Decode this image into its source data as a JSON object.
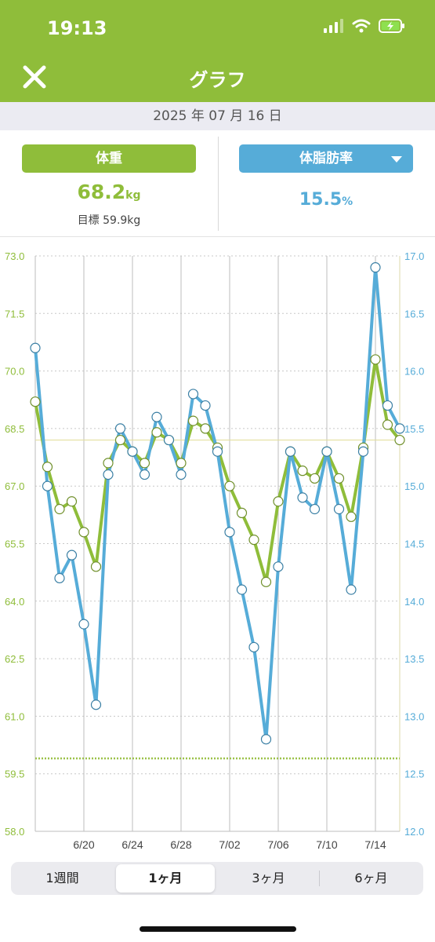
{
  "status_bar": {
    "time": "19:13",
    "icons": [
      "cellular-icon",
      "wifi-icon",
      "battery-charging-icon"
    ]
  },
  "header": {
    "title": "グラフ",
    "close_icon": "close-icon",
    "background": "#8fbd3a"
  },
  "date_bar": {
    "date": "2025 年 07 月 16 日"
  },
  "summary": {
    "weight": {
      "label": "体重",
      "value": "68.2",
      "unit": "kg",
      "goal": "目標 59.9kg",
      "color": "#8fbd3a"
    },
    "body_fat": {
      "label": "体脂肪率",
      "value": "15.5",
      "unit": "%",
      "color": "#56acd8",
      "dropdown_icon": "chevron-down-icon"
    }
  },
  "chart_data": {
    "type": "line",
    "x_tick_labels": [
      "6/20",
      "6/24",
      "6/28",
      "7/02",
      "7/06",
      "7/10",
      "7/14"
    ],
    "x_dates": [
      "6/16",
      "6/17",
      "6/18",
      "6/19",
      "6/20",
      "6/21",
      "6/22",
      "6/23",
      "6/24",
      "6/25",
      "6/26",
      "6/27",
      "6/28",
      "6/29",
      "6/30",
      "7/01",
      "7/02",
      "7/03",
      "7/04",
      "7/05",
      "7/06",
      "7/07",
      "7/08",
      "7/09",
      "7/10",
      "7/11",
      "7/12",
      "7/13",
      "7/14",
      "7/15",
      "7/16"
    ],
    "y_left": {
      "min": 58.0,
      "max": 73.0,
      "ticks": [
        "58.0",
        "59.5",
        "61.0",
        "62.5",
        "64.0",
        "65.5",
        "67.0",
        "68.5",
        "70.0",
        "71.5",
        "73.0"
      ],
      "color": "#8fbd3a"
    },
    "y_right": {
      "min": 12.0,
      "max": 17.0,
      "ticks": [
        "12.0",
        "12.5",
        "13.0",
        "13.5",
        "14.0",
        "14.5",
        "15.0",
        "15.5",
        "16.0",
        "16.5",
        "17.0"
      ],
      "color": "#56acd8"
    },
    "goal_weight": 59.9,
    "current_weight": 68.2,
    "series": [
      {
        "color": "#8fbd3a",
        "axis": "left",
        "values": [
          69.2,
          67.5,
          66.4,
          66.6,
          65.8,
          64.9,
          67.6,
          68.2,
          67.9,
          67.6,
          68.4,
          68.2,
          67.6,
          68.7,
          68.5,
          68.0,
          67.0,
          66.3,
          65.6,
          64.5,
          66.6,
          67.9,
          67.4,
          67.2,
          67.9,
          67.2,
          66.2,
          68.0,
          70.3,
          68.6,
          68.2
        ]
      },
      {
        "color": "#56acd8",
        "axis": "right",
        "values": [
          16.2,
          15.0,
          14.2,
          14.4,
          13.8,
          13.1,
          15.1,
          15.5,
          15.3,
          15.1,
          15.6,
          15.4,
          15.1,
          15.8,
          15.7,
          15.3,
          14.6,
          14.1,
          13.6,
          12.8,
          14.3,
          15.3,
          14.9,
          14.8,
          15.3,
          14.8,
          14.1,
          15.3,
          16.9,
          15.7,
          15.5
        ]
      }
    ]
  },
  "segmented": {
    "items": [
      "1週間",
      "1ヶ月",
      "3ヶ月",
      "6ヶ月"
    ],
    "selected": 1
  }
}
